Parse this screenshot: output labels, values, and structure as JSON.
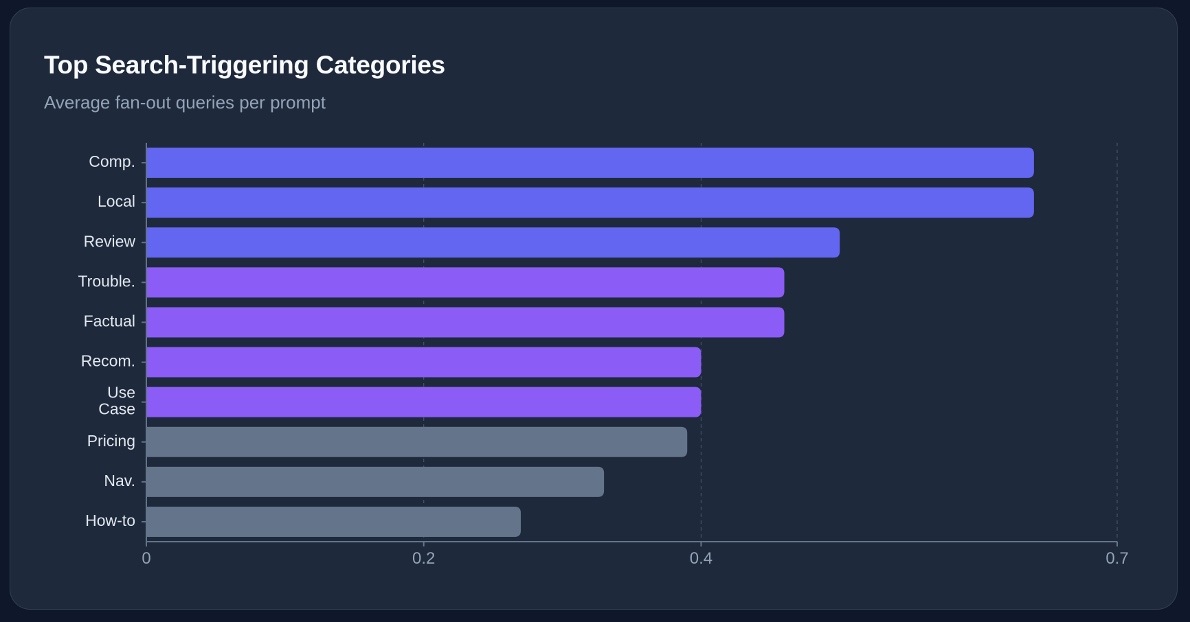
{
  "card": {
    "title": "Top Search-Triggering Categories",
    "subtitle": "Average fan-out queries per prompt"
  },
  "chart_data": {
    "type": "bar",
    "orientation": "horizontal",
    "title": "Top Search-Triggering Categories",
    "subtitle": "Average fan-out queries per prompt",
    "xlabel": "",
    "ylabel": "",
    "xlim": [
      0,
      0.7
    ],
    "xticks": [
      0,
      0.2,
      0.4,
      0.7
    ],
    "xtick_labels": [
      "0",
      "0.2",
      "0.4",
      "0.7"
    ],
    "grid": "vertical-dashed",
    "categories": [
      [
        "Comp."
      ],
      [
        "Local"
      ],
      [
        "Review"
      ],
      [
        "Trouble."
      ],
      [
        "Factual"
      ],
      [
        "Recom."
      ],
      [
        "Use",
        "Case"
      ],
      [
        "Pricing"
      ],
      [
        "Nav."
      ],
      [
        "How-to"
      ]
    ],
    "values": [
      0.64,
      0.64,
      0.5,
      0.46,
      0.46,
      0.4,
      0.4,
      0.39,
      0.33,
      0.27
    ],
    "bar_colors": [
      "#6366f1",
      "#6366f1",
      "#6366f1",
      "#8b5cf6",
      "#8b5cf6",
      "#8b5cf6",
      "#8b5cf6",
      "#64748b",
      "#64748b",
      "#64748b"
    ]
  }
}
